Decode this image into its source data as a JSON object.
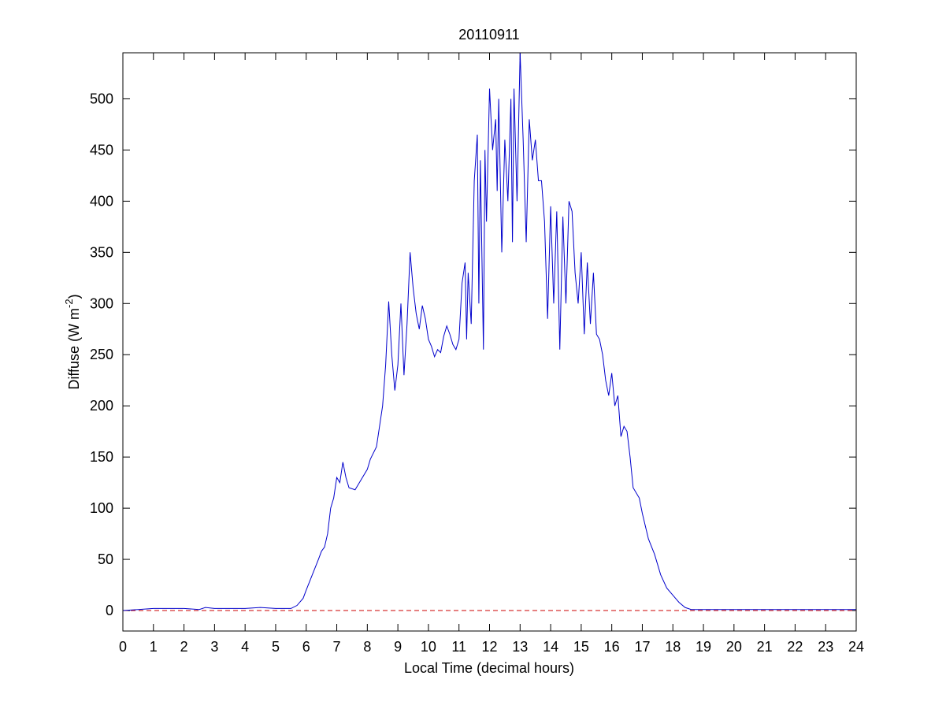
{
  "chart_data": {
    "type": "line",
    "title": "20110911",
    "xlabel": "Local Time (decimal hours)",
    "ylabel": {
      "base": "Diffuse (W m",
      "superscript": "-2",
      "suffix": ")"
    },
    "xlim": [
      0,
      24
    ],
    "ylim": [
      -20,
      545
    ],
    "xticks": [
      0,
      1,
      2,
      3,
      4,
      5,
      6,
      7,
      8,
      9,
      10,
      11,
      12,
      13,
      14,
      15,
      16,
      17,
      18,
      19,
      20,
      21,
      22,
      23,
      24
    ],
    "yticks": [
      0,
      50,
      100,
      150,
      200,
      250,
      300,
      350,
      400,
      450,
      500
    ],
    "reference_line": {
      "value": 0,
      "color": "#cc0000",
      "dashed": true
    },
    "series": [
      {
        "color": "#0000cc",
        "x": [
          0,
          0.5,
          1,
          2,
          2.5,
          2.7,
          3,
          4,
          4.5,
          5,
          5.5,
          5.7,
          5.9,
          6.0,
          6.2,
          6.4,
          6.5,
          6.6,
          6.7,
          6.8,
          6.9,
          7.0,
          7.1,
          7.2,
          7.3,
          7.4,
          7.6,
          7.8,
          8.0,
          8.1,
          8.3,
          8.5,
          8.6,
          8.7,
          8.8,
          8.9,
          9.0,
          9.1,
          9.2,
          9.3,
          9.4,
          9.5,
          9.6,
          9.7,
          9.8,
          9.9,
          10.0,
          10.1,
          10.2,
          10.3,
          10.4,
          10.5,
          10.6,
          10.7,
          10.8,
          10.9,
          11.0,
          11.1,
          11.2,
          11.25,
          11.3,
          11.4,
          11.5,
          11.6,
          11.65,
          11.7,
          11.8,
          11.85,
          11.9,
          12.0,
          12.1,
          12.2,
          12.25,
          12.3,
          12.4,
          12.5,
          12.6,
          12.7,
          12.75,
          12.8,
          12.9,
          13.0,
          13.1,
          13.2,
          13.3,
          13.4,
          13.5,
          13.6,
          13.7,
          13.8,
          13.9,
          14.0,
          14.1,
          14.2,
          14.3,
          14.4,
          14.5,
          14.6,
          14.7,
          14.8,
          14.9,
          15.0,
          15.1,
          15.2,
          15.3,
          15.4,
          15.5,
          15.6,
          15.7,
          15.8,
          15.9,
          16.0,
          16.1,
          16.2,
          16.3,
          16.4,
          16.5,
          16.6,
          16.7,
          16.9,
          17.0,
          17.2,
          17.4,
          17.6,
          17.8,
          18.0,
          18.2,
          18.4,
          18.6,
          19,
          20,
          21,
          22,
          23,
          24
        ],
        "values": [
          0,
          1,
          2,
          2,
          1,
          3,
          2,
          2,
          3,
          2,
          2,
          5,
          12,
          20,
          35,
          50,
          58,
          62,
          75,
          100,
          110,
          130,
          125,
          145,
          130,
          120,
          118,
          128,
          138,
          148,
          160,
          200,
          240,
          302,
          250,
          215,
          240,
          300,
          230,
          280,
          350,
          315,
          290,
          275,
          298,
          285,
          265,
          258,
          248,
          255,
          252,
          268,
          278,
          270,
          260,
          255,
          265,
          320,
          340,
          265,
          330,
          280,
          420,
          465,
          300,
          440,
          255,
          450,
          380,
          510,
          450,
          480,
          410,
          500,
          350,
          460,
          400,
          500,
          360,
          510,
          400,
          545,
          460,
          360,
          480,
          440,
          460,
          420,
          420,
          380,
          285,
          395,
          300,
          390,
          255,
          385,
          300,
          400,
          390,
          330,
          300,
          350,
          270,
          340,
          280,
          330,
          270,
          265,
          250,
          225,
          210,
          232,
          200,
          210,
          170,
          180,
          175,
          150,
          120,
          110,
          95,
          70,
          55,
          35,
          22,
          15,
          8,
          3,
          1,
          1,
          1,
          1,
          1,
          1,
          1
        ]
      }
    ]
  }
}
